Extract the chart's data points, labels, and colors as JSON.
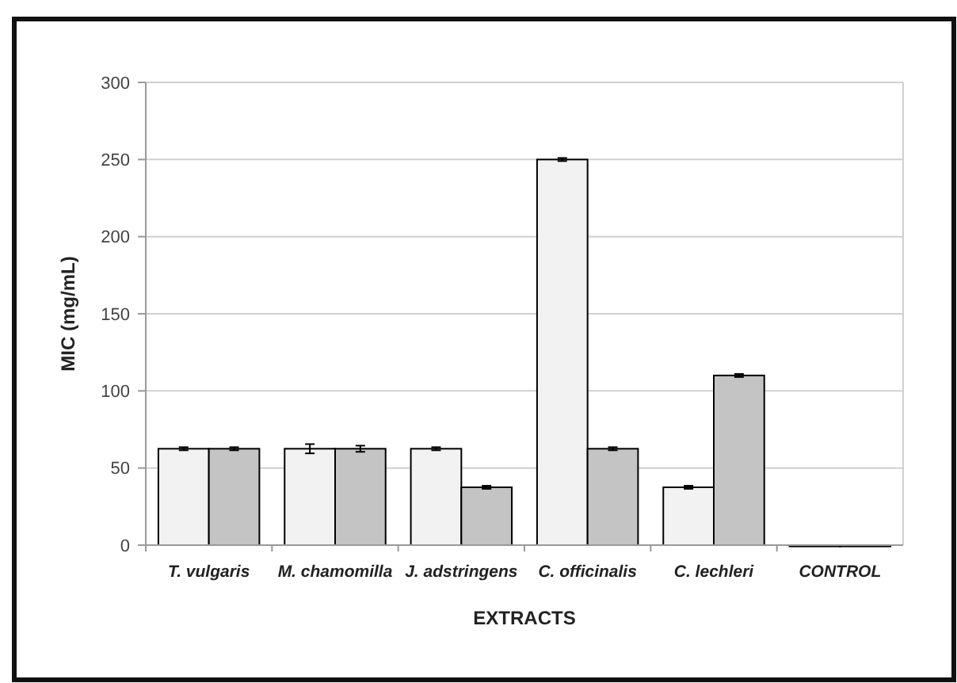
{
  "chart_data": {
    "type": "bar",
    "xlabel": "EXTRACTS",
    "ylabel": "MIC (mg/mL)",
    "categories": [
      "T. vulgaris",
      "M. chamomilla",
      "J. adstringens",
      "C. officinalis",
      "C. lechleri",
      "CONTROL"
    ],
    "series": [
      {
        "color": "#f2f2f2",
        "values": [
          62.5,
          62.5,
          62.5,
          250,
          37.5,
          0
        ],
        "errors": [
          1,
          3,
          1,
          1,
          1,
          null
        ]
      },
      {
        "color": "#c4c4c4",
        "values": [
          62.5,
          62.5,
          37.5,
          62.5,
          110,
          0
        ],
        "errors": [
          1,
          2,
          1,
          1,
          1,
          null
        ]
      }
    ],
    "ylim": [
      0,
      300
    ],
    "yticks": [
      0,
      50,
      100,
      150,
      200,
      250,
      300
    ],
    "grid": "y"
  }
}
